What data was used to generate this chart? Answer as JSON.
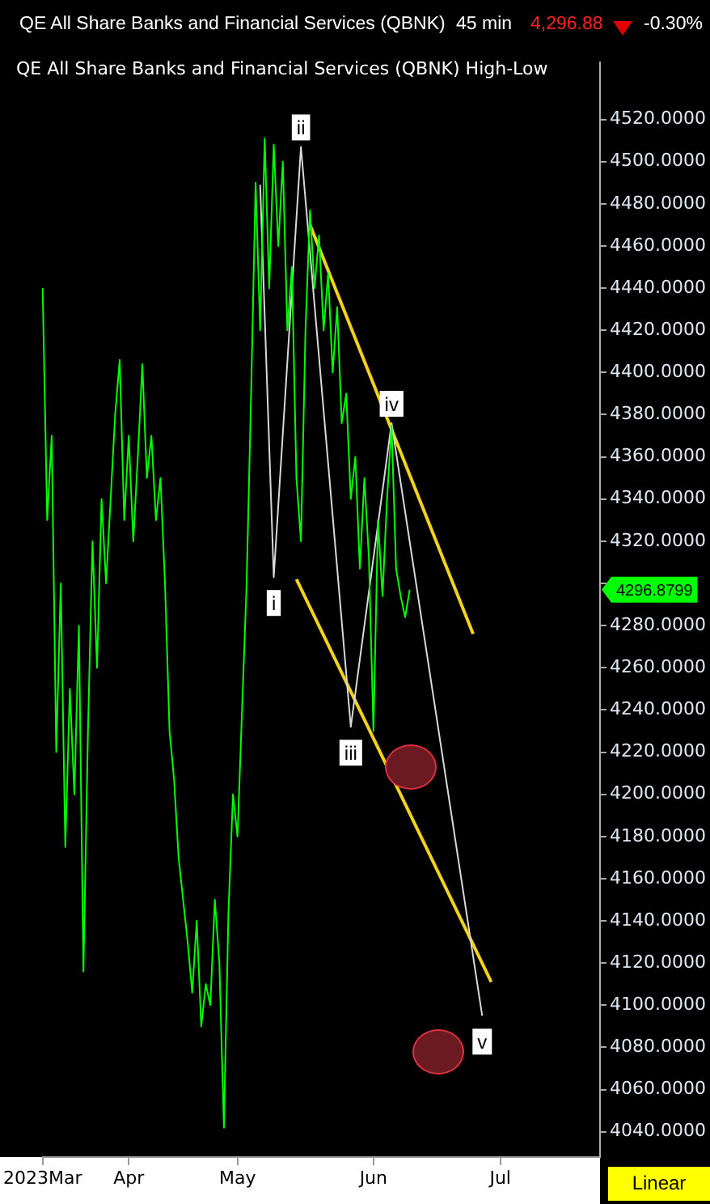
{
  "chart_data": {
    "type": "line",
    "title": "QE All Share Banks and Financial Services (QBNK)",
    "subtitle": "QE All Share Banks and Financial Services (QBNK) High-Low",
    "categories": [
      "2023Mar",
      null,
      null,
      null,
      null,
      null,
      null,
      null,
      null,
      null,
      null,
      null,
      null,
      null,
      null,
      null,
      null,
      null,
      null,
      "Apr",
      null,
      null,
      null,
      null,
      null,
      null,
      null,
      null,
      null,
      null,
      null,
      null,
      null,
      null,
      null,
      null,
      null,
      null,
      null,
      null,
      null,
      null,
      null,
      "May",
      null,
      null,
      null,
      null,
      null,
      null,
      null,
      null,
      null,
      null,
      null,
      null,
      null,
      null,
      null,
      null,
      null,
      null,
      null,
      null,
      null,
      null,
      null,
      null,
      null,
      null,
      null,
      null,
      null,
      "Jun",
      null,
      null,
      null,
      null,
      null,
      null,
      null,
      null,
      null,
      null,
      null,
      null,
      null,
      null,
      null,
      null,
      null,
      null,
      null,
      null,
      null,
      null,
      null,
      null,
      null,
      null,
      null,
      "Jul",
      null,
      null,
      null,
      null,
      null,
      null,
      null,
      null,
      null,
      null,
      null,
      null,
      null,
      null,
      null,
      null,
      null,
      null,
      null,
      null,
      null,
      null
    ],
    "ylim": [
      4028,
      4547
    ],
    "yticks": [
      {
        "value": 4040,
        "label": "4040.0000"
      },
      {
        "value": 4060,
        "label": "4060.0000"
      },
      {
        "value": 4080,
        "label": "4080.0000"
      },
      {
        "value": 4100,
        "label": "4100.0000"
      },
      {
        "value": 4120,
        "label": "4120.0000"
      },
      {
        "value": 4140,
        "label": "4140.0000"
      },
      {
        "value": 4160,
        "label": "4160.0000"
      },
      {
        "value": 4180,
        "label": "4180.0000"
      },
      {
        "value": 4200,
        "label": "4200.0000"
      },
      {
        "value": 4220,
        "label": "4220.0000"
      },
      {
        "value": 4240,
        "label": "4240.0000"
      },
      {
        "value": 4260,
        "label": "4260.0000"
      },
      {
        "value": 4280,
        "label": "4280.0000"
      },
      {
        "value": 4300,
        "label": null
      },
      {
        "value": 4320,
        "label": "4320.0000"
      },
      {
        "value": 4340,
        "label": "4340.0000"
      },
      {
        "value": 4360,
        "label": "4360.0000"
      },
      {
        "value": 4380,
        "label": "4380.0000"
      },
      {
        "value": 4400,
        "label": "4400.0000"
      },
      {
        "value": 4420,
        "label": "4420.0000"
      },
      {
        "value": 4440,
        "label": "4440.0000"
      },
      {
        "value": 4460,
        "label": "4460.0000"
      },
      {
        "value": 4480,
        "label": "4480.0000"
      },
      {
        "value": 4500,
        "label": "4500.0000"
      },
      {
        "value": 4520,
        "label": "4520.0000"
      }
    ],
    "grid": false,
    "legend": false,
    "marker": "none",
    "line_style": "solid",
    "series": [
      {
        "color": "#00ff00",
        "values": [
          4440,
          4330,
          4370,
          4220,
          4300,
          4175,
          4250,
          4200,
          4280,
          4116,
          4230,
          4320,
          4260,
          4340,
          4300,
          4340,
          4380,
          4406,
          4330,
          4370,
          4320,
          4360,
          4404,
          4350,
          4370,
          4330,
          4350,
          4300,
          4230,
          4207,
          4170,
          4150,
          4130,
          4106,
          4140,
          4090,
          4110,
          4100,
          4150,
          4120,
          4042,
          4144,
          4200,
          4180,
          4240,
          4299,
          4390,
          4490,
          4420,
          4511,
          4440,
          4508,
          4460,
          4500,
          4420,
          4450,
          4350,
          4320,
          4420,
          4477,
          4440,
          4465,
          4420,
          4447,
          4400,
          4431,
          4376,
          4390,
          4340,
          4360,
          4307,
          4350,
          4312,
          4230,
          4330,
          4294,
          4340,
          4375,
          4307,
          4294,
          4284,
          4297,
          null,
          null,
          null,
          null,
          null,
          null,
          null,
          null,
          null,
          null,
          null,
          null,
          null,
          null,
          null,
          null,
          null,
          null,
          null,
          null,
          null,
          null,
          null,
          null,
          null,
          null,
          null,
          null,
          null,
          null,
          null,
          null,
          null,
          null,
          null,
          null,
          null,
          null,
          null,
          null,
          null,
          null
        ]
      },
      {
        "color": "#d8d8d8",
        "values": [
          null,
          null,
          null,
          null,
          null,
          null,
          null,
          null,
          null,
          null,
          null,
          null,
          null,
          null,
          null,
          null,
          null,
          null,
          null,
          null,
          null,
          null,
          null,
          null,
          null,
          null,
          null,
          null,
          null,
          null,
          null,
          null,
          null,
          null,
          null,
          null,
          null,
          null,
          null,
          null,
          null,
          null,
          null,
          null,
          null,
          null,
          null,
          null,
          4489,
          null,
          null,
          4303,
          null,
          null,
          null,
          null,
          null,
          4507,
          null,
          null,
          null,
          null,
          null,
          null,
          null,
          null,
          null,
          null,
          4232,
          null,
          null,
          null,
          null,
          null,
          null,
          null,
          null,
          4376,
          null,
          null,
          null,
          null,
          null,
          null,
          null,
          null,
          null,
          null,
          null,
          null,
          null,
          null,
          null,
          null,
          null,
          null,
          null,
          4095,
          null,
          null,
          null,
          null,
          null,
          null,
          null,
          null,
          null,
          null,
          null,
          null,
          null,
          null,
          null,
          null,
          null,
          null,
          null,
          null,
          null,
          null,
          null,
          null,
          null,
          null
        ]
      },
      {
        "color": "#f2d21b",
        "values": [
          null,
          null,
          null,
          null,
          null,
          null,
          null,
          null,
          null,
          null,
          null,
          null,
          null,
          null,
          null,
          null,
          null,
          null,
          null,
          null,
          null,
          null,
          null,
          null,
          null,
          null,
          null,
          null,
          null,
          null,
          null,
          null,
          null,
          null,
          null,
          null,
          null,
          null,
          null,
          null,
          null,
          null,
          null,
          null,
          null,
          null,
          null,
          null,
          null,
          null,
          null,
          null,
          null,
          null,
          null,
          null,
          null,
          null,
          null,
          4470,
          null,
          null,
          null,
          null,
          null,
          null,
          null,
          null,
          null,
          null,
          null,
          null,
          null,
          null,
          null,
          null,
          null,
          null,
          null,
          null,
          null,
          null,
          null,
          null,
          null,
          null,
          null,
          null,
          null,
          null,
          null,
          null,
          null,
          null,
          null,
          4276,
          null,
          null,
          null,
          null,
          null,
          null,
          null,
          null,
          null,
          null,
          null,
          null,
          null,
          null,
          null,
          null,
          null,
          null,
          null,
          null,
          null,
          null,
          null,
          null,
          null,
          null,
          null,
          null
        ]
      },
      {
        "color": "#f2d21b",
        "values": [
          null,
          null,
          null,
          null,
          null,
          null,
          null,
          null,
          null,
          null,
          null,
          null,
          null,
          null,
          null,
          null,
          null,
          null,
          null,
          null,
          null,
          null,
          null,
          null,
          null,
          null,
          null,
          null,
          null,
          null,
          null,
          null,
          null,
          null,
          null,
          null,
          null,
          null,
          null,
          null,
          null,
          null,
          null,
          null,
          null,
          null,
          null,
          null,
          null,
          null,
          null,
          null,
          null,
          null,
          null,
          null,
          4302,
          null,
          null,
          null,
          null,
          null,
          null,
          null,
          null,
          null,
          null,
          null,
          null,
          null,
          null,
          null,
          null,
          null,
          null,
          null,
          null,
          null,
          null,
          null,
          null,
          null,
          null,
          null,
          null,
          null,
          null,
          null,
          null,
          null,
          null,
          null,
          null,
          null,
          null,
          null,
          null,
          null,
          null,
          4111,
          null,
          null,
          null,
          null,
          null,
          null,
          null,
          null,
          null,
          null,
          null,
          null,
          null,
          null,
          null,
          null,
          null,
          null,
          null,
          null,
          null,
          null,
          null,
          null
        ]
      }
    ],
    "annotations": [
      "45 min",
      "4,296.88",
      "-0.30%",
      "Linear",
      "i",
      "ii",
      "iii",
      "iv",
      "v",
      "4296.8799"
    ]
  }
}
